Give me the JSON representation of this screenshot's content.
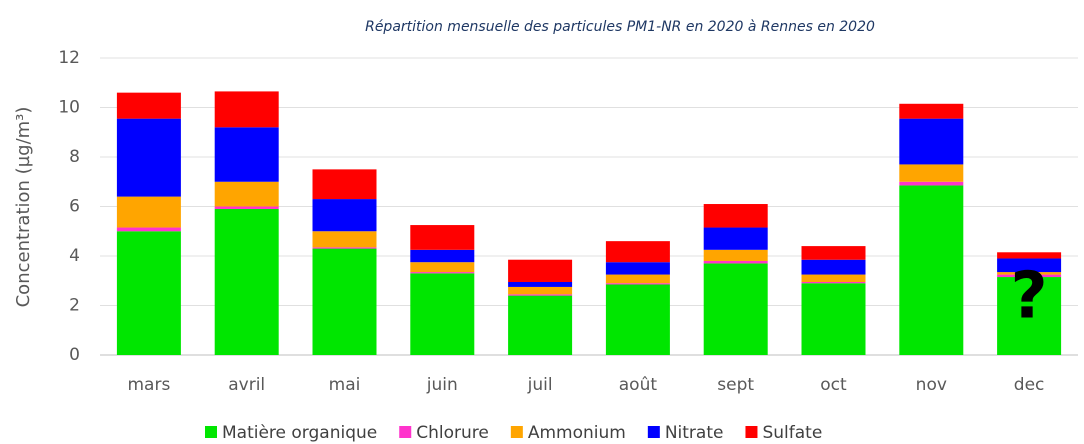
{
  "chart_data": {
    "type": "stacked_bar",
    "title": "Répartition mensuelle des particules PM1-NR en 2020 à Rennes en 2020",
    "y_label": "Concentration (µg/m³)",
    "categories": [
      "mars",
      "avril",
      "mai",
      "juin",
      "juil",
      "août",
      "sept",
      "oct",
      "nov",
      "dec"
    ],
    "series": [
      {
        "name": "Matière organique",
        "color": "#00e600",
        "values": [
          5.0,
          5.9,
          4.3,
          3.3,
          2.4,
          2.85,
          3.7,
          2.9,
          6.85,
          3.15
        ]
      },
      {
        "name": "Chlorure",
        "color": "#ff33cc",
        "values": [
          0.15,
          0.1,
          0.05,
          0.05,
          0.05,
          0.05,
          0.1,
          0.05,
          0.15,
          0.1
        ]
      },
      {
        "name": "Ammonium",
        "color": "#ffa500",
        "values": [
          1.25,
          1.0,
          0.65,
          0.4,
          0.3,
          0.35,
          0.45,
          0.3,
          0.7,
          0.1
        ]
      },
      {
        "name": "Nitrate",
        "color": "#0000ff",
        "values": [
          3.15,
          2.2,
          1.3,
          0.5,
          0.2,
          0.5,
          0.9,
          0.6,
          1.85,
          0.55
        ]
      },
      {
        "name": "Sulfate",
        "color": "#ff0000",
        "values": [
          1.05,
          1.45,
          1.2,
          1.0,
          0.9,
          0.85,
          0.95,
          0.55,
          0.6,
          0.25
        ]
      }
    ],
    "annotation": "?",
    "ylim": [
      0,
      12
    ],
    "yticks": [
      0,
      2,
      4,
      6,
      8,
      10,
      12
    ],
    "grid": true
  }
}
